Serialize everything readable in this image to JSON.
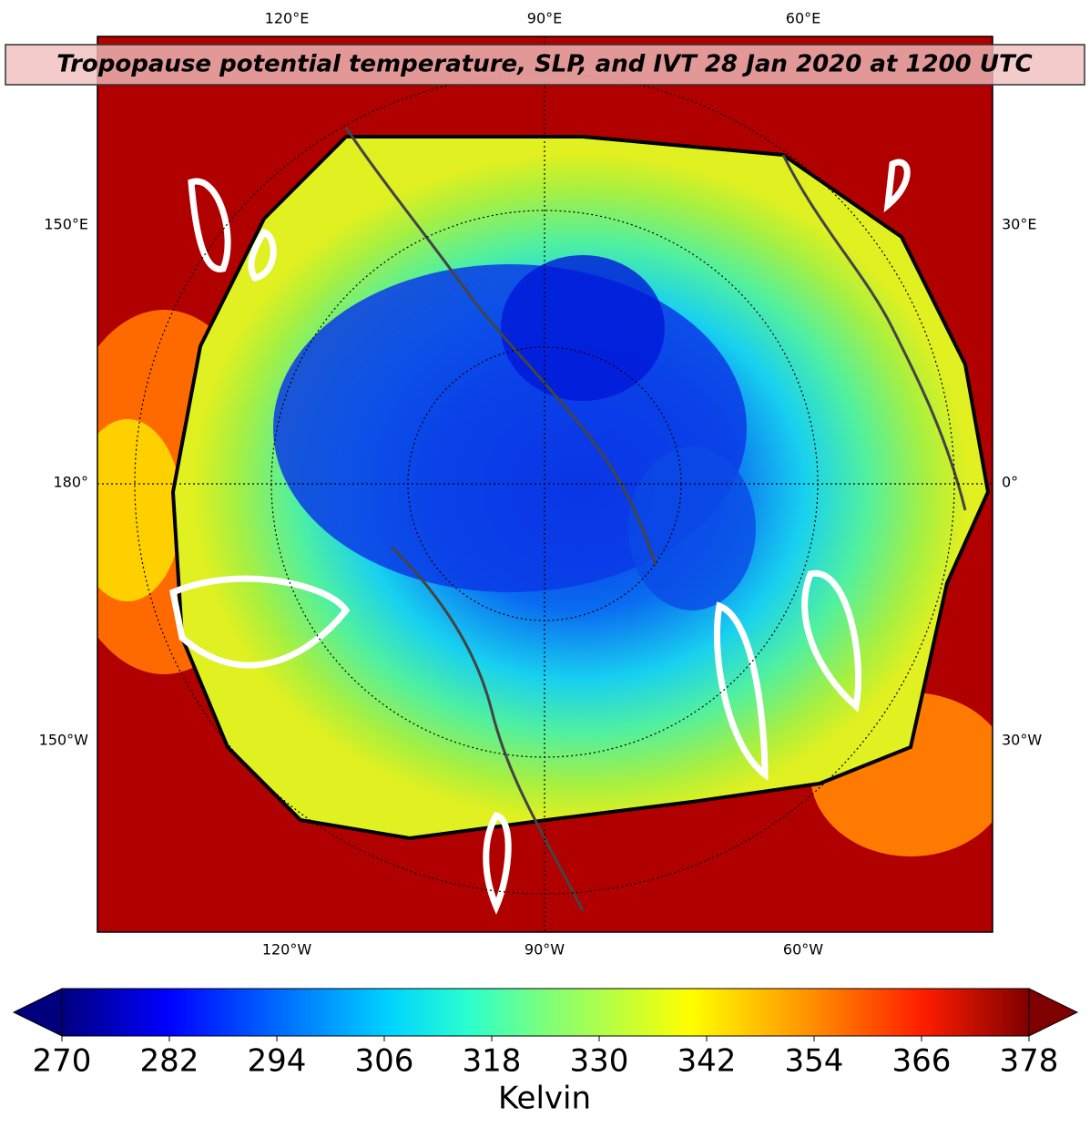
{
  "map": {
    "title": "Tropopause potential temperature, SLP, and IVT 28 Jan 2020 at 1200 UTC",
    "labels": {
      "top": [
        "120°E",
        "90°E",
        "60°E"
      ],
      "left": [
        "150°E",
        "180°",
        "150°W"
      ],
      "right": [
        "30°E",
        "0°",
        "30°W"
      ],
      "bottom": [
        "120°W",
        "90°W",
        "60°W"
      ]
    },
    "colorbar": {
      "lim": [
        270,
        378
      ],
      "ticks": [
        270,
        282,
        294,
        306,
        318,
        330,
        342,
        354,
        366,
        378
      ],
      "label": "Kelvin",
      "extend": "both"
    }
  }
}
